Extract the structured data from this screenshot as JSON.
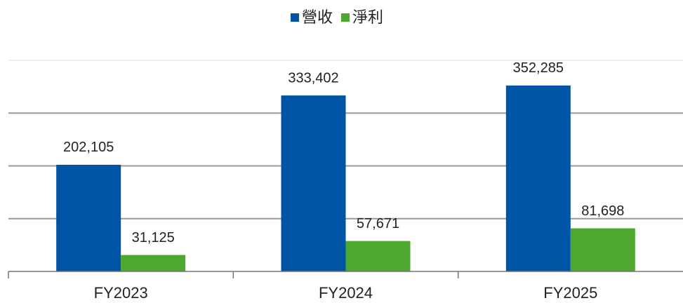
{
  "chart_data": {
    "type": "bar",
    "categories": [
      "FY2023",
      "FY2024",
      "FY2025"
    ],
    "series": [
      {
        "name": "營收",
        "color": "#0054a6",
        "values": [
          202105,
          333402,
          352285
        ],
        "value_labels": [
          "202,105",
          "333,402",
          "352,285"
        ]
      },
      {
        "name": "淨利",
        "color": "#4ea72e",
        "values": [
          31125,
          57671,
          81698
        ],
        "value_labels": [
          "31,125",
          "57,671",
          "81,698"
        ]
      }
    ],
    "ylim": [
      0,
      400000
    ],
    "yticks": [
      0,
      100000,
      200000,
      300000,
      400000
    ],
    "grid": true,
    "legend": "top"
  }
}
